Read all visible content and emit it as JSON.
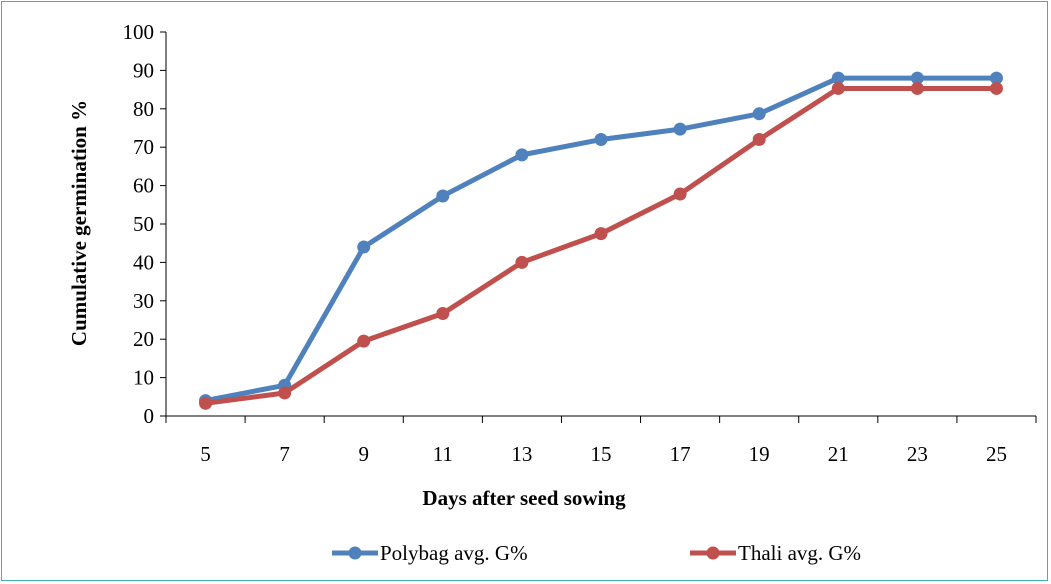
{
  "chart_data": {
    "type": "line",
    "title": "",
    "xlabel": "Days after seed sowing",
    "ylabel": "Cumulative germination %",
    "categories": [
      "5",
      "7",
      "9",
      "11",
      "13",
      "15",
      "17",
      "19",
      "21",
      "23",
      "25"
    ],
    "ylim": [
      0,
      100
    ],
    "yticks": [
      0,
      10,
      20,
      30,
      40,
      50,
      60,
      70,
      80,
      90,
      100
    ],
    "grid": false,
    "legend_position": "bottom",
    "series": [
      {
        "name": "Polybag avg. G%",
        "color": "#4f81bd",
        "values": [
          4,
          8,
          44,
          57.3,
          68,
          72,
          74.7,
          78.7,
          88,
          88,
          88
        ]
      },
      {
        "name": "Thali avg. G%",
        "color": "#c0504d",
        "values": [
          3.3,
          6,
          19.5,
          26.7,
          40,
          47.5,
          57.8,
          72,
          85.3,
          85.3,
          85.3
        ]
      }
    ]
  }
}
